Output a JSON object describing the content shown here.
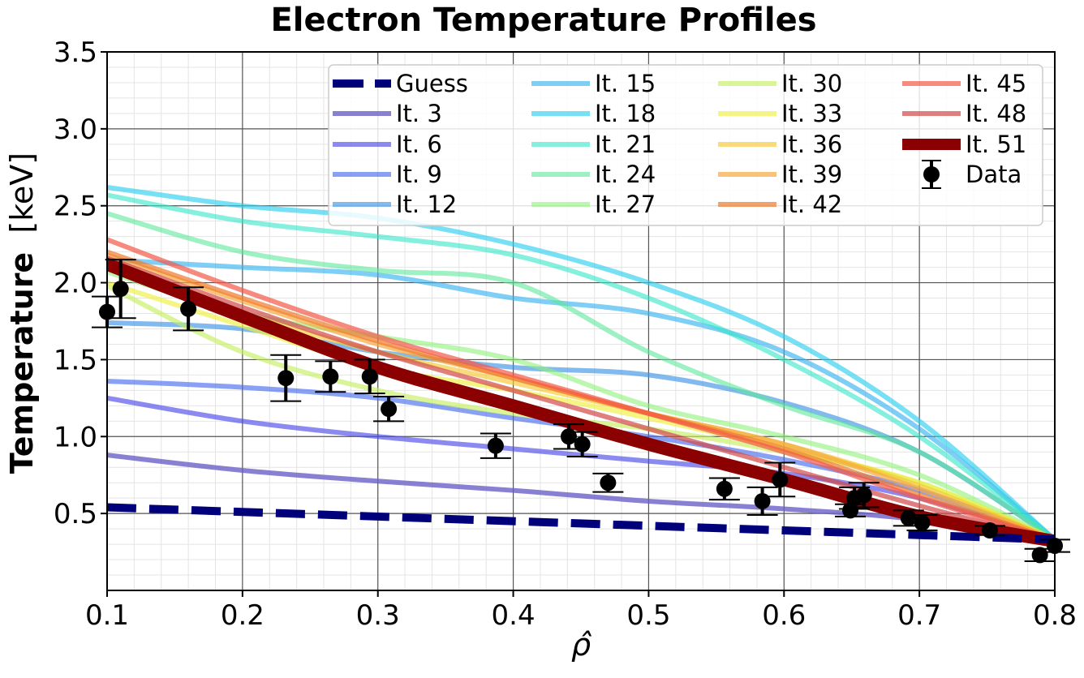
{
  "chart_data": {
    "type": "line",
    "title": "Electron Temperature Profiles",
    "xlabel": "ρ̂",
    "ylabel_main": "Temperature",
    "ylabel_unit": "[keV]",
    "xlim": [
      0.1,
      0.8
    ],
    "ylim": [
      0.0,
      3.5
    ],
    "xticks": [
      "0.1",
      "0.2",
      "0.3",
      "0.4",
      "0.5",
      "0.6",
      "0.7",
      "0.8"
    ],
    "yticks": [
      "0.5",
      "1.0",
      "1.5",
      "2.0",
      "2.5",
      "3.0",
      "3.5"
    ],
    "grid": true,
    "legend_position": "top-right",
    "series": [
      {
        "name": "It. 3",
        "color": "#6a62c8",
        "opacity": 0.8,
        "lw": 6,
        "x": [
          0.1,
          0.2,
          0.3,
          0.4,
          0.5,
          0.6,
          0.7,
          0.8
        ],
        "y": [
          0.88,
          0.78,
          0.71,
          0.65,
          0.58,
          0.53,
          0.46,
          0.33
        ]
      },
      {
        "name": "It. 6",
        "color": "#4b4be8",
        "opacity": 0.65,
        "lw": 6,
        "x": [
          0.1,
          0.2,
          0.3,
          0.4,
          0.5,
          0.6,
          0.7,
          0.8
        ],
        "y": [
          1.25,
          1.1,
          1.0,
          0.92,
          0.84,
          0.76,
          0.6,
          0.33
        ]
      },
      {
        "name": "It. 9",
        "color": "#4a6ff0",
        "opacity": 0.65,
        "lw": 6,
        "x": [
          0.1,
          0.2,
          0.3,
          0.4,
          0.5,
          0.6,
          0.7,
          0.8
        ],
        "y": [
          1.36,
          1.32,
          1.25,
          1.12,
          1.0,
          0.85,
          0.65,
          0.33
        ]
      },
      {
        "name": "It. 12",
        "color": "#3f95e6",
        "opacity": 0.65,
        "lw": 6,
        "x": [
          0.1,
          0.2,
          0.3,
          0.4,
          0.5,
          0.6,
          0.7,
          0.8
        ],
        "y": [
          1.74,
          1.7,
          1.55,
          1.45,
          1.4,
          1.22,
          0.9,
          0.33
        ]
      },
      {
        "name": "It. 15",
        "color": "#3ab4f0",
        "opacity": 0.65,
        "lw": 6,
        "x": [
          0.1,
          0.2,
          0.3,
          0.4,
          0.5,
          0.6,
          0.7,
          0.8
        ],
        "y": [
          2.15,
          2.1,
          2.05,
          1.9,
          1.8,
          1.55,
          1.05,
          0.33
        ]
      },
      {
        "name": "It. 18",
        "color": "#2fd0ee",
        "opacity": 0.65,
        "lw": 6,
        "x": [
          0.1,
          0.2,
          0.3,
          0.4,
          0.5,
          0.6,
          0.7,
          0.8
        ],
        "y": [
          2.62,
          2.5,
          2.42,
          2.25,
          2.0,
          1.65,
          1.1,
          0.33
        ]
      },
      {
        "name": "It. 21",
        "color": "#33e6c8",
        "opacity": 0.6,
        "lw": 6,
        "x": [
          0.1,
          0.2,
          0.3,
          0.4,
          0.5,
          0.6,
          0.7,
          0.8
        ],
        "y": [
          2.57,
          2.4,
          2.3,
          2.18,
          1.9,
          1.5,
          1.0,
          0.33
        ]
      },
      {
        "name": "It. 24",
        "color": "#5be89a",
        "opacity": 0.6,
        "lw": 6,
        "x": [
          0.1,
          0.2,
          0.3,
          0.4,
          0.5,
          0.6,
          0.7,
          0.8
        ],
        "y": [
          2.45,
          2.2,
          2.08,
          2.0,
          1.55,
          1.2,
          0.9,
          0.33
        ]
      },
      {
        "name": "It. 27",
        "color": "#8ef27a",
        "opacity": 0.6,
        "lw": 6,
        "x": [
          0.1,
          0.2,
          0.3,
          0.4,
          0.5,
          0.6,
          0.7,
          0.8
        ],
        "y": [
          2.07,
          1.8,
          1.65,
          1.5,
          1.2,
          1.0,
          0.75,
          0.33
        ]
      },
      {
        "name": "It. 30",
        "color": "#c4f060",
        "opacity": 0.65,
        "lw": 6,
        "x": [
          0.1,
          0.2,
          0.3,
          0.4,
          0.5,
          0.6,
          0.7,
          0.8
        ],
        "y": [
          1.98,
          1.55,
          1.3,
          1.15,
          1.05,
          0.9,
          0.7,
          0.33
        ]
      },
      {
        "name": "It. 33",
        "color": "#f0f040",
        "opacity": 0.65,
        "lw": 6,
        "x": [
          0.1,
          0.2,
          0.3,
          0.4,
          0.5,
          0.6,
          0.7,
          0.8
        ],
        "y": [
          2.0,
          1.72,
          1.45,
          1.3,
          1.12,
          0.92,
          0.7,
          0.33
        ]
      },
      {
        "name": "It. 36",
        "color": "#f5c832",
        "opacity": 0.65,
        "lw": 6,
        "x": [
          0.1,
          0.2,
          0.3,
          0.4,
          0.5,
          0.6,
          0.7,
          0.8
        ],
        "y": [
          2.1,
          1.8,
          1.55,
          1.35,
          1.15,
          0.95,
          0.68,
          0.33
        ]
      },
      {
        "name": "It. 39",
        "color": "#f7a840",
        "opacity": 0.7,
        "lw": 6,
        "x": [
          0.1,
          0.2,
          0.3,
          0.4,
          0.5,
          0.6,
          0.7,
          0.8
        ],
        "y": [
          2.18,
          1.88,
          1.6,
          1.38,
          1.15,
          0.95,
          0.66,
          0.33
        ]
      },
      {
        "name": "It. 42",
        "color": "#ef7a2e",
        "opacity": 0.7,
        "lw": 6,
        "x": [
          0.1,
          0.2,
          0.3,
          0.4,
          0.5,
          0.6,
          0.7,
          0.8
        ],
        "y": [
          2.2,
          1.9,
          1.62,
          1.38,
          1.15,
          0.92,
          0.62,
          0.33
        ]
      },
      {
        "name": "It. 45",
        "color": "#f45848",
        "opacity": 0.7,
        "lw": 6,
        "x": [
          0.1,
          0.2,
          0.3,
          0.4,
          0.5,
          0.6,
          0.7,
          0.8
        ],
        "y": [
          2.28,
          1.95,
          1.65,
          1.4,
          1.15,
          0.9,
          0.6,
          0.33
        ]
      },
      {
        "name": "It. 48",
        "color": "#d24848",
        "opacity": 0.7,
        "lw": 6,
        "x": [
          0.1,
          0.2,
          0.3,
          0.4,
          0.5,
          0.6,
          0.7,
          0.8
        ],
        "y": [
          2.16,
          1.84,
          1.55,
          1.3,
          1.05,
          0.8,
          0.55,
          0.32
        ]
      },
      {
        "name": "It. 51",
        "color": "#8b0000",
        "opacity": 1,
        "lw": 16,
        "x": [
          0.1,
          0.2,
          0.3,
          0.4,
          0.5,
          0.6,
          0.7,
          0.8
        ],
        "y": [
          2.12,
          1.78,
          1.45,
          1.2,
          0.95,
          0.72,
          0.48,
          0.32
        ]
      },
      {
        "name": "Guess",
        "color": "#00007a",
        "opacity": 1,
        "lw": 10,
        "dashed": true,
        "x": [
          0.1,
          0.2,
          0.3,
          0.4,
          0.5,
          0.6,
          0.7,
          0.8
        ],
        "y": [
          0.54,
          0.51,
          0.48,
          0.45,
          0.42,
          0.39,
          0.36,
          0.33
        ]
      }
    ],
    "data_points": {
      "name": "Data",
      "color": "#000000",
      "points": [
        {
          "x": 0.1,
          "y": 1.81,
          "err": 0.1
        },
        {
          "x": 0.11,
          "y": 1.96,
          "err": 0.19
        },
        {
          "x": 0.16,
          "y": 1.83,
          "err": 0.14
        },
        {
          "x": 0.232,
          "y": 1.38,
          "err": 0.15
        },
        {
          "x": 0.265,
          "y": 1.39,
          "err": 0.1
        },
        {
          "x": 0.294,
          "y": 1.39,
          "err": 0.11
        },
        {
          "x": 0.308,
          "y": 1.18,
          "err": 0.08
        },
        {
          "x": 0.387,
          "y": 0.94,
          "err": 0.08
        },
        {
          "x": 0.441,
          "y": 1.0,
          "err": 0.08
        },
        {
          "x": 0.451,
          "y": 0.95,
          "err": 0.08
        },
        {
          "x": 0.47,
          "y": 0.7,
          "err": 0.06
        },
        {
          "x": 0.556,
          "y": 0.66,
          "err": 0.07
        },
        {
          "x": 0.584,
          "y": 0.58,
          "err": 0.09
        },
        {
          "x": 0.597,
          "y": 0.72,
          "err": 0.11
        },
        {
          "x": 0.649,
          "y": 0.52,
          "err": 0.04
        },
        {
          "x": 0.652,
          "y": 0.6,
          "err": 0.07
        },
        {
          "x": 0.659,
          "y": 0.62,
          "err": 0.08
        },
        {
          "x": 0.692,
          "y": 0.47,
          "err": 0.05
        },
        {
          "x": 0.702,
          "y": 0.44,
          "err": 0.05
        },
        {
          "x": 0.752,
          "y": 0.39,
          "err": 0.03
        },
        {
          "x": 0.789,
          "y": 0.23,
          "err": 0.04
        },
        {
          "x": 0.8,
          "y": 0.29,
          "err": 0.04
        }
      ]
    },
    "legend_columns": [
      [
        "Guess",
        "It. 3",
        "It. 6",
        "It. 9",
        "It. 12"
      ],
      [
        "It. 15",
        "It. 18",
        "It. 21",
        "It. 24",
        "It. 27"
      ],
      [
        "It. 30",
        "It. 33",
        "It. 36",
        "It. 39",
        "It. 42"
      ],
      [
        "It. 45",
        "It. 48",
        "It. 51",
        "Data"
      ]
    ]
  }
}
